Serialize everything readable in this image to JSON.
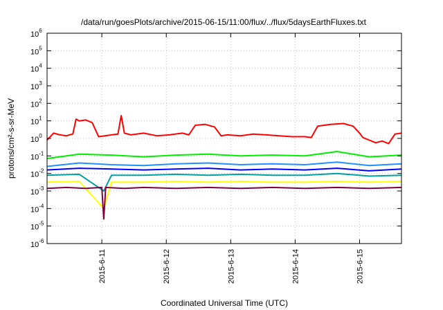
{
  "chart_data": {
    "type": "line",
    "title": "/data/run/goesPlots/archive/2015-06-15/11:00/flux/../flux/5daysEarthFluxes.txt",
    "xlabel": "Coordinated Universal Time (UTC)",
    "ylabel": "protons/cm²-s-sr-MeV",
    "yscale": "log",
    "ylim": [
      1e-06,
      1000000.0
    ],
    "xlim": [
      0,
      5.5
    ],
    "grid": true,
    "legend": "none",
    "y_ticks": [
      {
        "base": "10",
        "exp": "-6",
        "value": -6
      },
      {
        "base": "10",
        "exp": "-5",
        "value": -5
      },
      {
        "base": "10",
        "exp": "-4",
        "value": -4
      },
      {
        "base": "10",
        "exp": "-3",
        "value": -3
      },
      {
        "base": "10",
        "exp": "-2",
        "value": -2
      },
      {
        "base": "10",
        "exp": "-1",
        "value": -1
      },
      {
        "base": "10",
        "exp": "0",
        "value": 0
      },
      {
        "base": "10",
        "exp": "1",
        "value": 1
      },
      {
        "base": "10",
        "exp": "2",
        "value": 2
      },
      {
        "base": "10",
        "exp": "3",
        "value": 3
      },
      {
        "base": "10",
        "exp": "4",
        "value": 4
      },
      {
        "base": "10",
        "exp": "5",
        "value": 5
      },
      {
        "base": "10",
        "exp": "6",
        "value": 6
      }
    ],
    "x_ticks": [
      {
        "label": "2015-6-11",
        "value": 0.85
      },
      {
        "label": "2015-6-12",
        "value": 1.85
      },
      {
        "label": "2015-6-13",
        "value": 2.85
      },
      {
        "label": "2015-6-14",
        "value": 3.85
      },
      {
        "label": "2015-6-15",
        "value": 4.85
      }
    ],
    "series": [
      {
        "color": "#ff0000",
        "x": [
          0,
          0.1,
          0.2,
          0.3,
          0.4,
          0.45,
          0.5,
          0.6,
          0.7,
          0.75,
          0.8,
          0.9,
          1.0,
          1.1,
          1.15,
          1.2,
          1.3,
          1.5,
          1.7,
          1.9,
          2.1,
          2.2,
          2.3,
          2.45,
          2.6,
          2.7,
          2.8,
          3.0,
          3.2,
          3.4,
          3.6,
          3.8,
          4.0,
          4.1,
          4.2,
          4.4,
          4.6,
          4.75,
          4.85,
          4.9,
          5.0,
          5.1,
          5.2,
          5.3,
          5.4,
          5.5
        ],
        "values": [
          -0.1,
          0.3,
          0.2,
          0.15,
          0.25,
          1.1,
          1.0,
          1.05,
          0.9,
          0.5,
          0.1,
          0.15,
          0.2,
          0.25,
          1.3,
          0.3,
          0.2,
          0.3,
          0.15,
          0.2,
          0.3,
          0.2,
          0.75,
          0.8,
          0.65,
          0.15,
          0.2,
          0.15,
          0.25,
          0.2,
          0.15,
          0.1,
          0.1,
          0.05,
          0.7,
          0.8,
          0.85,
          0.7,
          0.3,
          0.05,
          -0.1,
          -0.25,
          -0.15,
          -0.3,
          0.25,
          0.3
        ]
      },
      {
        "color": "#00ee00",
        "x": [
          0,
          0.5,
          1.0,
          1.5,
          2.0,
          2.5,
          3.0,
          3.5,
          4.0,
          4.5,
          5.0,
          5.5
        ],
        "values": [
          -1.15,
          -0.9,
          -0.95,
          -1.05,
          -0.95,
          -0.9,
          -1.0,
          -0.95,
          -1.0,
          -0.75,
          -1.05,
          -0.95
        ]
      },
      {
        "color": "#1e90ff",
        "x": [
          0,
          0.5,
          1.0,
          1.5,
          2.0,
          2.5,
          3.0,
          3.5,
          4.0,
          4.5,
          5.0,
          5.5
        ],
        "values": [
          -1.6,
          -1.4,
          -1.5,
          -1.55,
          -1.45,
          -1.4,
          -1.5,
          -1.45,
          -1.5,
          -1.35,
          -1.55,
          -1.45
        ]
      },
      {
        "color": "#0000ff",
        "x": [
          0,
          0.5,
          1.0,
          1.5,
          2.0,
          2.5,
          3.0,
          3.5,
          4.0,
          4.5,
          5.0,
          5.5
        ],
        "values": [
          -1.8,
          -1.7,
          -1.75,
          -1.8,
          -1.75,
          -1.7,
          -1.8,
          -1.75,
          -1.8,
          -1.7,
          -1.85,
          -1.75
        ]
      },
      {
        "color": "#00a0a0",
        "x": [
          0,
          0.5,
          0.88,
          1.0,
          1.5,
          2.0,
          2.5,
          3.0,
          3.5,
          4.0,
          4.5,
          5.0,
          5.5
        ],
        "values": [
          -2.1,
          -2.05,
          -3.0,
          -2.1,
          -2.1,
          -2.05,
          -2.1,
          -2.05,
          -2.1,
          -2.1,
          -2.0,
          -2.15,
          -2.1
        ]
      },
      {
        "color": "#ffff00",
        "x": [
          0,
          0.5,
          0.88,
          1.0,
          1.5,
          2.0,
          2.5,
          3.0,
          3.5,
          4.0,
          4.5,
          5.0,
          5.5
        ],
        "values": [
          -2.5,
          -2.45,
          -4.0,
          -2.5,
          -2.5,
          -2.45,
          -2.5,
          -2.45,
          -2.5,
          -2.5,
          -2.45,
          -2.5,
          -2.45
        ]
      },
      {
        "color": "#800040",
        "x": [
          0,
          0.3,
          0.6,
          0.85,
          0.88,
          0.91,
          1.2,
          1.5,
          2.0,
          2.5,
          3.0,
          3.5,
          4.0,
          4.5,
          5.0,
          5.5
        ],
        "values": [
          -2.85,
          -2.8,
          -2.85,
          -2.8,
          -4.6,
          -2.8,
          -2.85,
          -2.8,
          -2.85,
          -2.8,
          -2.85,
          -2.8,
          -2.85,
          -2.8,
          -2.85,
          -2.8
        ]
      }
    ]
  }
}
